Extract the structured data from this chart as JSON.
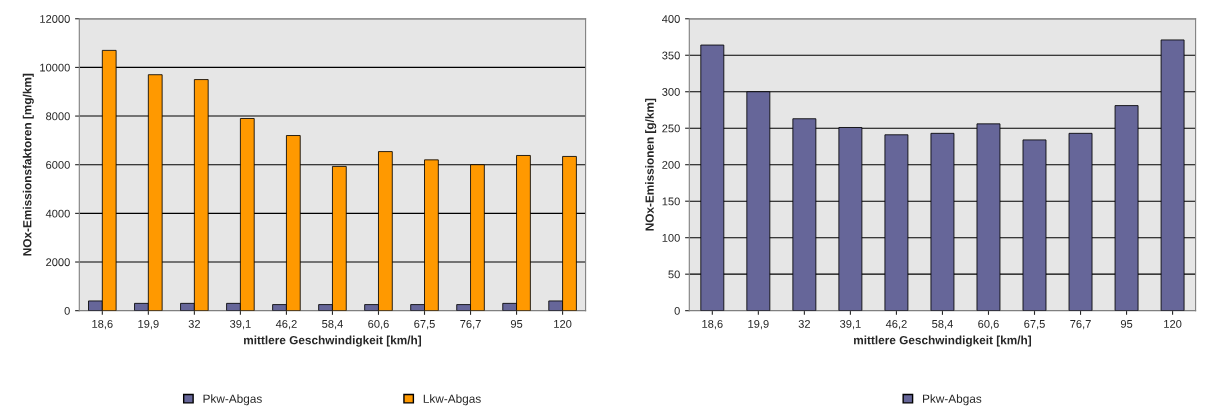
{
  "chart_data": [
    {
      "type": "bar",
      "xlabel": "mittlere Geschwindigkeit [km/h]",
      "ylabel": "NOx-Emissionsfaktoren [mg/km]",
      "categories": [
        "18,6",
        "19,9",
        "32",
        "39,1",
        "46,2",
        "58,4",
        "60,6",
        "67,5",
        "76,7",
        "95",
        "120"
      ],
      "series": [
        {
          "name": "Pkw-Abgas",
          "color": "#666699",
          "values": [
            400,
            300,
            300,
            300,
            250,
            250,
            250,
            250,
            250,
            300,
            400
          ]
        },
        {
          "name": "Lkw-Abgas",
          "color": "#ff9900",
          "values": [
            10700,
            9700,
            9500,
            7900,
            7200,
            5930,
            6540,
            6200,
            6000,
            6380,
            6340
          ]
        }
      ],
      "ylim": [
        0,
        12000
      ],
      "yticks": [
        0,
        2000,
        4000,
        6000,
        8000,
        10000,
        12000
      ],
      "grid": "y",
      "legend": "bottom"
    },
    {
      "type": "bar",
      "xlabel": "mittlere Geschwindigkeit [km/h]",
      "ylabel": "NOx-Emissionen [g/km]",
      "categories": [
        "18,6",
        "19,9",
        "32",
        "39,1",
        "46,2",
        "58,4",
        "60,6",
        "67,5",
        "76,7",
        "95",
        "120"
      ],
      "series": [
        {
          "name": "Pkw-Abgas",
          "color": "#666699",
          "values": [
            364,
            300,
            263,
            251,
            241,
            243,
            256,
            234,
            243,
            281,
            371
          ]
        }
      ],
      "ylim": [
        0,
        400
      ],
      "yticks": [
        0,
        50,
        100,
        150,
        200,
        250,
        300,
        350,
        400
      ],
      "grid": "y",
      "legend": "bottom"
    }
  ]
}
